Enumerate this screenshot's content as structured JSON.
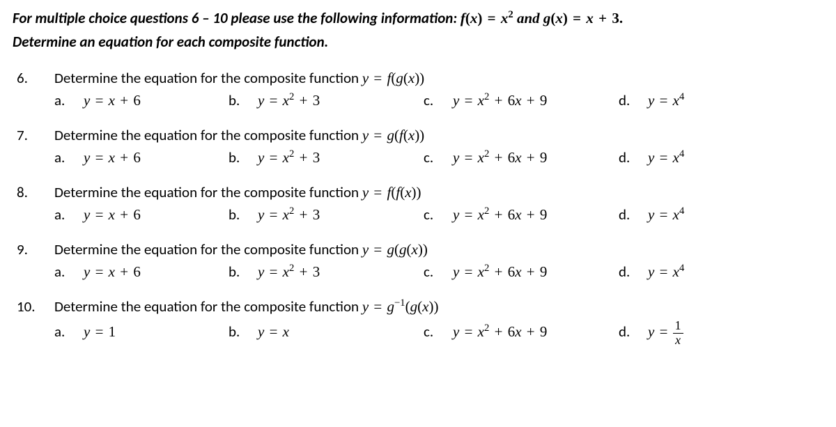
{
  "intro_line1_pre": "For multiple choice questions 6 – 10  please use the following information:   ",
  "intro_fns": "f(x) = x²  and   g(x)  =  x  +  3.",
  "intro_line2": "Determine an equation for each composite function.",
  "questions": {
    "q6": {
      "num": "6.",
      "text_pre": "Determine the equation for the composite function ",
      "comp": "y = f(g(x))",
      "a": "y = x + 6",
      "b": "y = x² + 3",
      "c": "y = x² + 6x + 9",
      "d": "y = x⁴"
    },
    "q7": {
      "num": "7.",
      "text_pre": "Determine the equation for the composite function ",
      "comp": "y = g(f(x))",
      "a": "y = x + 6",
      "b": "y = x² + 3",
      "c": "y = x² + 6x + 9",
      "d": "y = x⁴"
    },
    "q8": {
      "num": "8.",
      "text_pre": "Determine the equation for the composite function ",
      "comp": "y = f(f(x))",
      "a": "y = x + 6",
      "b": "y = x² + 3",
      "c": "y = x² + 6x + 9",
      "d": "y = x⁴"
    },
    "q9": {
      "num": "9.",
      "text_pre": "Determine the equation for the composite function ",
      "comp": "y = g(g(x))",
      "a": "y = x + 6",
      "b": "y = x² + 3",
      "c": "y = x² + 6x + 9",
      "d": "y = x⁴"
    },
    "q10": {
      "num": "10.",
      "text_pre": "Determine the equation for the composite function ",
      "comp": "y = g⁻¹(g(x))",
      "a": "y = 1",
      "b": "y = x",
      "c": "y = x² + 6x + 9",
      "d_pre": "y = ",
      "d_num": "1",
      "d_den": "x"
    }
  },
  "labels": {
    "a": "a.",
    "b": "b.",
    "c": "c.",
    "d": "d."
  }
}
